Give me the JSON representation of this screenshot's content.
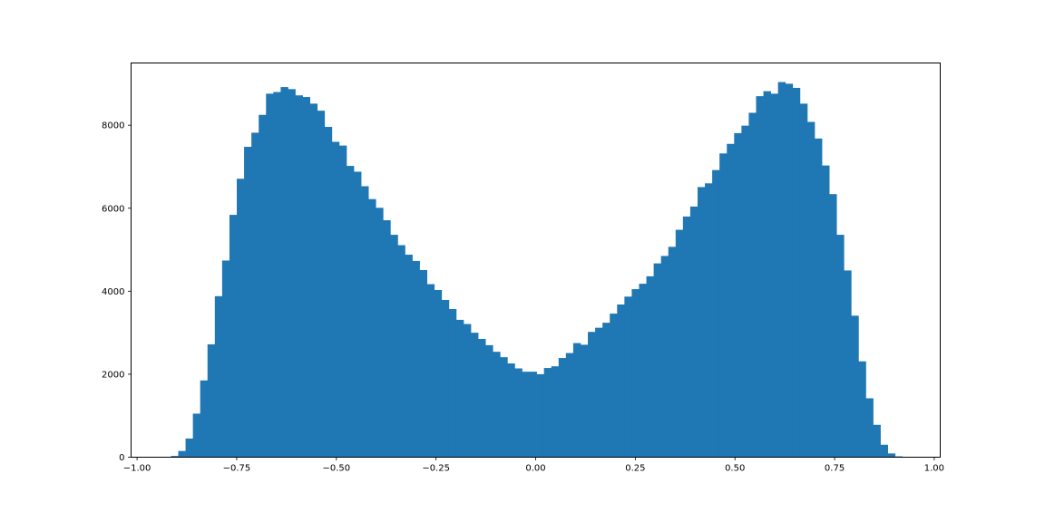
{
  "chart_data": {
    "type": "bar",
    "title": "",
    "xlabel": "",
    "ylabel": "",
    "xlim": [
      -1.0,
      1.0
    ],
    "ylim": [
      0,
      9500
    ],
    "grid": false,
    "bar_color": "#1f77b4",
    "bin_start": -0.915,
    "bin_end": 0.92,
    "values": [
      30,
      150,
      450,
      1050,
      1850,
      2720,
      3880,
      4740,
      5840,
      6710,
      7480,
      7820,
      8250,
      8760,
      8800,
      8920,
      8870,
      8720,
      8680,
      8520,
      8350,
      7960,
      7600,
      7510,
      7020,
      6880,
      6530,
      6220,
      6010,
      5710,
      5360,
      5110,
      4880,
      4730,
      4510,
      4170,
      4030,
      3790,
      3570,
      3310,
      3210,
      3000,
      2850,
      2700,
      2540,
      2410,
      2260,
      2140,
      2060,
      2060,
      2000,
      2150,
      2190,
      2390,
      2510,
      2750,
      2710,
      3020,
      3120,
      3240,
      3460,
      3680,
      3870,
      4050,
      4180,
      4360,
      4670,
      4850,
      5070,
      5480,
      5800,
      6040,
      6510,
      6600,
      6920,
      7320,
      7550,
      7810,
      7990,
      8300,
      8700,
      8820,
      8760,
      9040,
      9000,
      8900,
      8520,
      8080,
      7680,
      7030,
      6340,
      5360,
      4500,
      3410,
      2310,
      1420,
      780,
      300,
      90,
      20
    ],
    "x_ticks": [
      {
        "value": -1.0,
        "label": "−1.00"
      },
      {
        "value": -0.75,
        "label": "−0.75"
      },
      {
        "value": -0.5,
        "label": "−0.50"
      },
      {
        "value": -0.25,
        "label": "−0.25"
      },
      {
        "value": 0.0,
        "label": "0.00"
      },
      {
        "value": 0.25,
        "label": "0.25"
      },
      {
        "value": 0.5,
        "label": "0.50"
      },
      {
        "value": 0.75,
        "label": "0.75"
      },
      {
        "value": 1.0,
        "label": "1.00"
      }
    ],
    "y_ticks": [
      {
        "value": 0,
        "label": "0"
      },
      {
        "value": 2000,
        "label": "2000"
      },
      {
        "value": 4000,
        "label": "4000"
      },
      {
        "value": 6000,
        "label": "6000"
      },
      {
        "value": 8000,
        "label": "8000"
      }
    ]
  }
}
